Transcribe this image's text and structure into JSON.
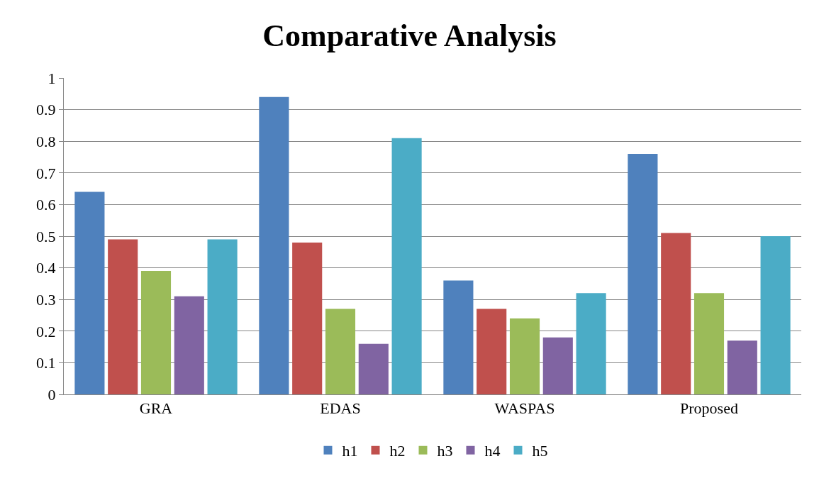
{
  "chart_data": {
    "type": "bar",
    "title": "Comparative Analysis",
    "categories": [
      "GRA",
      "EDAS",
      "WASPAS",
      "Proposed"
    ],
    "series": [
      {
        "name": "h1",
        "color": "#4f81bd",
        "values": [
          0.64,
          0.94,
          0.36,
          0.76
        ]
      },
      {
        "name": "h2",
        "color": "#c0504d",
        "values": [
          0.49,
          0.48,
          0.27,
          0.51
        ]
      },
      {
        "name": "h3",
        "color": "#9bbb59",
        "values": [
          0.39,
          0.27,
          0.24,
          0.32
        ]
      },
      {
        "name": "h4",
        "color": "#8064a2",
        "values": [
          0.31,
          0.16,
          0.18,
          0.17
        ]
      },
      {
        "name": "h5",
        "color": "#4bacc6",
        "values": [
          0.49,
          0.81,
          0.32,
          0.5
        ]
      }
    ],
    "ylim": [
      0,
      1
    ],
    "yticks": [
      0,
      0.1,
      0.2,
      0.3,
      0.4,
      0.5,
      0.6,
      0.7,
      0.8,
      0.9,
      1
    ],
    "grid": "y",
    "legend": "bottom"
  }
}
